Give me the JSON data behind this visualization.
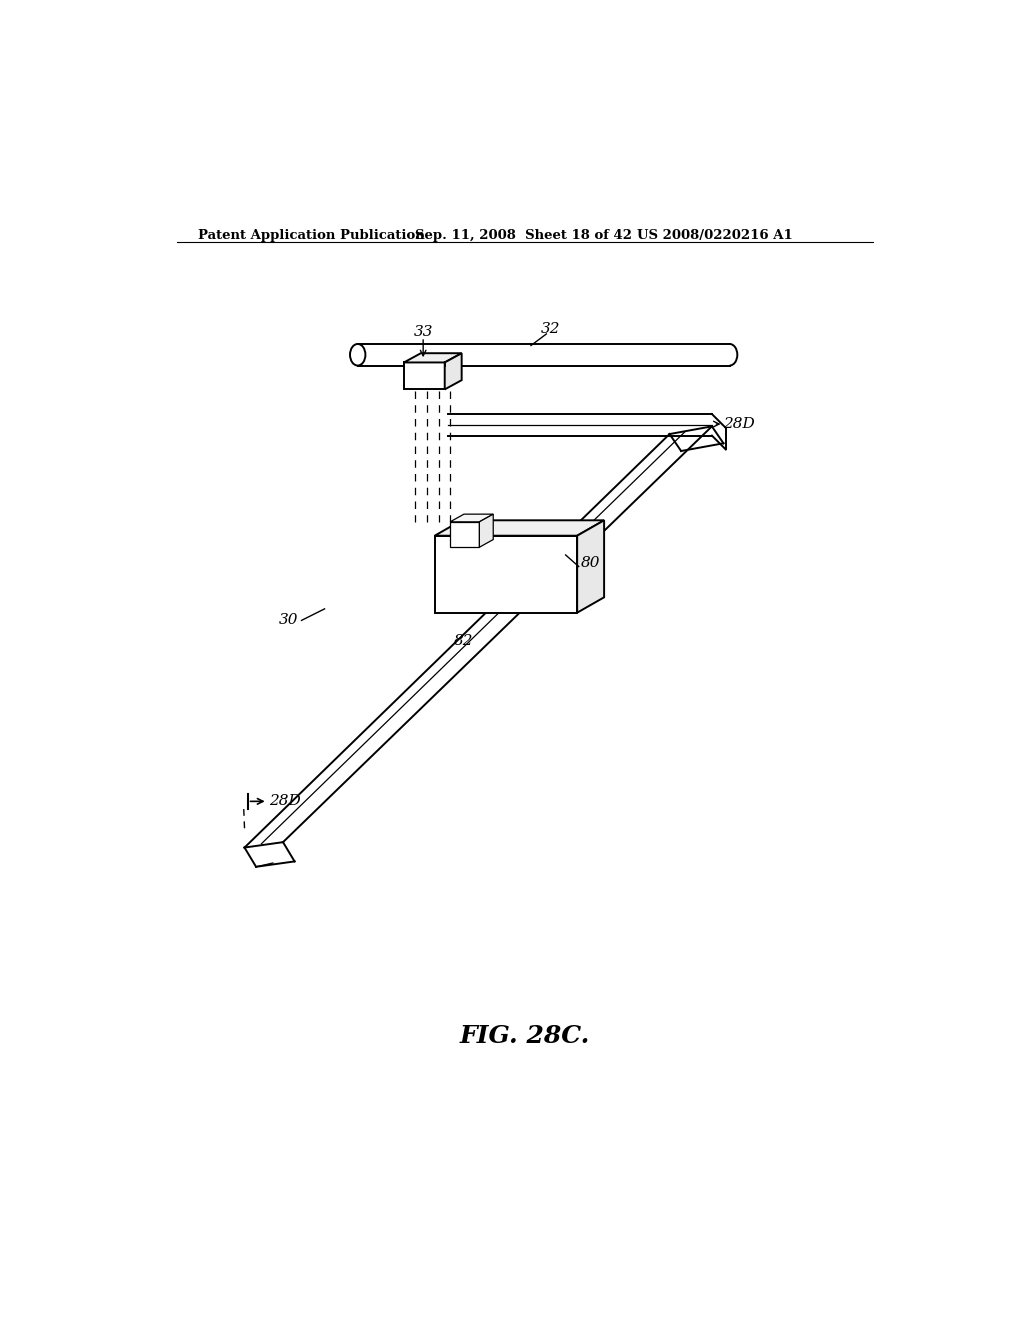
{
  "bg_color": "#ffffff",
  "header_left": "Patent Application Publication",
  "header_mid": "Sep. 11, 2008  Sheet 18 of 42",
  "header_right": "US 2008/0220216 A1",
  "figure_label": "FIG. 28C.",
  "line_color": "#000000",
  "lw_main": 1.4,
  "lw_thin": 0.9
}
